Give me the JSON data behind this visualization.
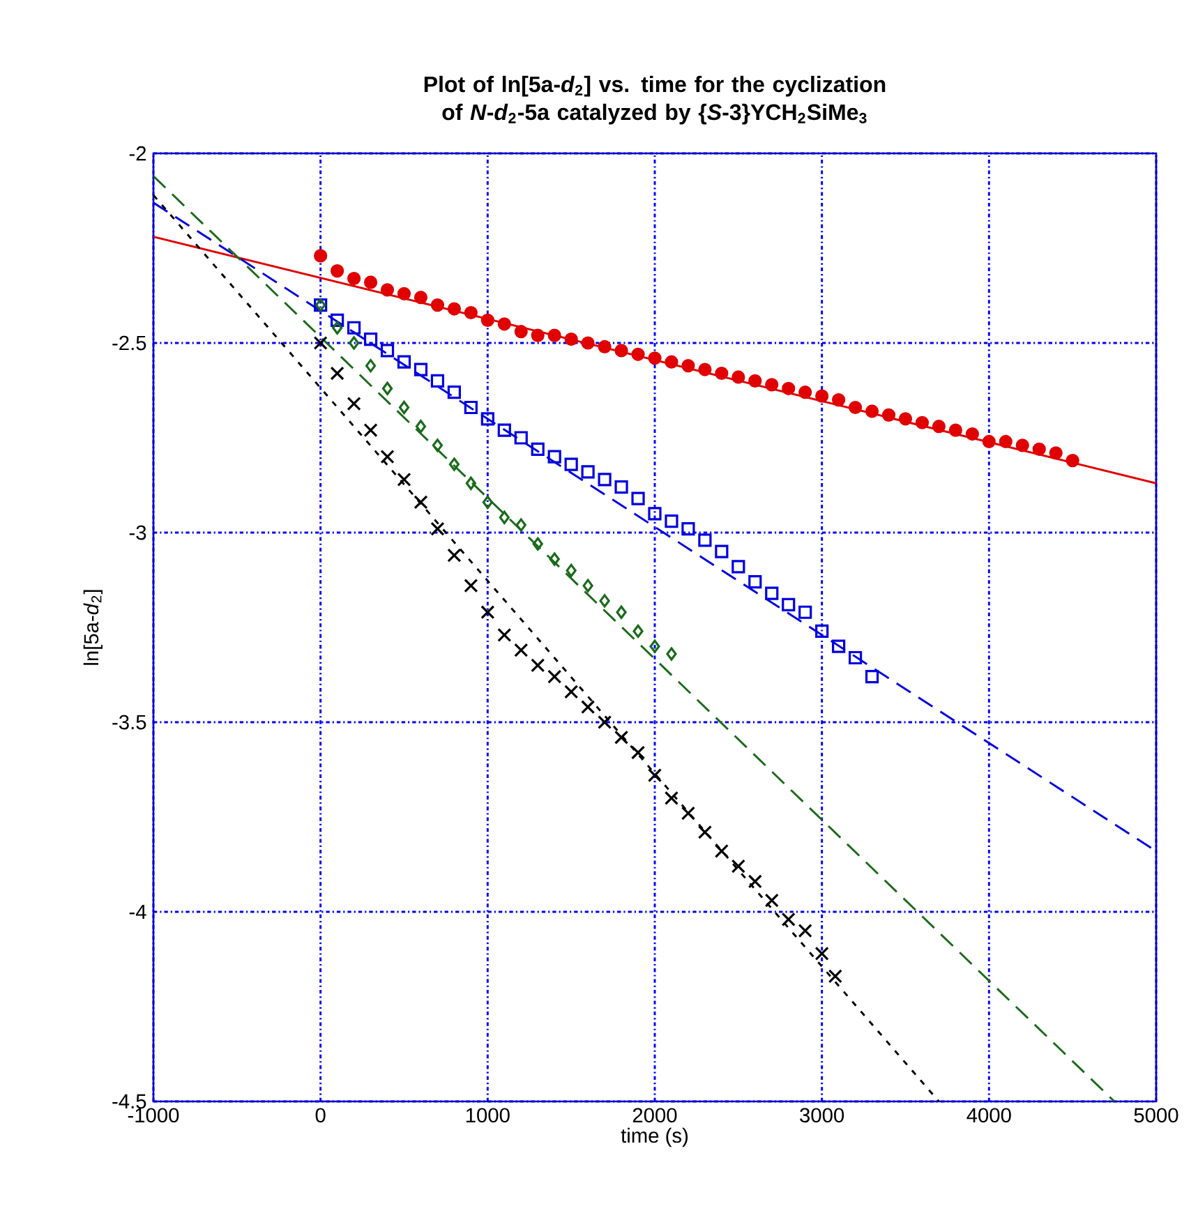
{
  "chart_data": {
    "type": "scatter",
    "title": "Plot of ln[5a-*d*$_{2}$] vs. time for the cyclization of *N*-*d*$_{2}$-5a catalyzed by {*S*-3}YCH$_{2}$SiMe$_{3}$",
    "xlabel": "time (s)",
    "ylabel": "ln[5a-*d*$_{2}$]",
    "xlim": [
      -1000,
      5000
    ],
    "ylim": [
      -4.5,
      -2
    ],
    "xticks": [
      -1000,
      0,
      1000,
      2000,
      3000,
      4000,
      5000
    ],
    "yticks": [
      -4.5,
      -4,
      -3.5,
      -3,
      -2.5,
      -2
    ],
    "grid": true,
    "series": [
      {
        "marker": "circle",
        "color": "#e00000",
        "x": [
          0,
          100,
          200,
          300,
          400,
          500,
          600,
          700,
          800,
          900,
          1000,
          1100,
          1200,
          1300,
          1400,
          1500,
          1600,
          1700,
          1800,
          1900,
          2000,
          2100,
          2200,
          2300,
          2400,
          2500,
          2600,
          2700,
          2800,
          2900,
          3000,
          3100,
          3200,
          3300,
          3400,
          3500,
          3600,
          3700,
          3800,
          3900,
          4000,
          4100,
          4200,
          4300,
          4400,
          4500
        ],
        "values": [
          -2.27,
          -2.31,
          -2.33,
          -2.34,
          -2.36,
          -2.37,
          -2.38,
          -2.4,
          -2.41,
          -2.42,
          -2.44,
          -2.45,
          -2.47,
          -2.48,
          -2.48,
          -2.49,
          -2.5,
          -2.51,
          -2.52,
          -2.53,
          -2.54,
          -2.55,
          -2.56,
          -2.57,
          -2.58,
          -2.59,
          -2.6,
          -2.61,
          -2.62,
          -2.63,
          -2.64,
          -2.65,
          -2.67,
          -2.68,
          -2.69,
          -2.7,
          -2.71,
          -2.72,
          -2.73,
          -2.74,
          -2.76,
          -2.76,
          -2.77,
          -2.78,
          -2.79,
          -2.81
        ]
      },
      {
        "marker": "square",
        "color": "#0000e0",
        "x": [
          0,
          100,
          200,
          300,
          400,
          500,
          600,
          700,
          800,
          900,
          1000,
          1100,
          1200,
          1300,
          1400,
          1500,
          1600,
          1700,
          1800,
          1900,
          2000,
          2100,
          2200,
          2300,
          2400,
          2500,
          2600,
          2700,
          2800,
          2900,
          3000,
          3100,
          3200,
          3300
        ],
        "values": [
          -2.4,
          -2.44,
          -2.46,
          -2.49,
          -2.52,
          -2.55,
          -2.57,
          -2.6,
          -2.63,
          -2.67,
          -2.7,
          -2.73,
          -2.75,
          -2.78,
          -2.8,
          -2.82,
          -2.84,
          -2.86,
          -2.88,
          -2.91,
          -2.95,
          -2.97,
          -2.99,
          -3.02,
          -3.05,
          -3.09,
          -3.13,
          -3.16,
          -3.19,
          -3.21,
          -3.26,
          -3.3,
          -3.33,
          -3.38
        ]
      },
      {
        "marker": "diamond",
        "color": "#1a6b1a",
        "x": [
          0,
          100,
          200,
          300,
          400,
          500,
          600,
          700,
          800,
          900,
          1000,
          1100,
          1200,
          1300,
          1400,
          1500,
          1600,
          1700,
          1800,
          1900,
          2000,
          2100
        ],
        "values": [
          -2.4,
          -2.46,
          -2.5,
          -2.56,
          -2.62,
          -2.67,
          -2.72,
          -2.77,
          -2.82,
          -2.87,
          -2.92,
          -2.96,
          -2.98,
          -3.03,
          -3.07,
          -3.1,
          -3.14,
          -3.18,
          -3.21,
          -3.26,
          -3.3,
          -3.32
        ]
      },
      {
        "marker": "cross",
        "color": "#000000",
        "x": [
          0,
          100,
          200,
          300,
          400,
          500,
          600,
          700,
          800,
          900,
          1000,
          1100,
          1200,
          1300,
          1400,
          1500,
          1600,
          1700,
          1800,
          1900,
          2000,
          2100,
          2200,
          2300,
          2400,
          2500,
          2600,
          2700,
          2800,
          2900,
          3000,
          3080
        ],
        "values": [
          -2.5,
          -2.58,
          -2.66,
          -2.73,
          -2.8,
          -2.86,
          -2.92,
          -2.99,
          -3.06,
          -3.14,
          -3.21,
          -3.27,
          -3.31,
          -3.35,
          -3.38,
          -3.42,
          -3.46,
          -3.5,
          -3.54,
          -3.58,
          -3.64,
          -3.7,
          -3.74,
          -3.79,
          -3.84,
          -3.88,
          -3.92,
          -3.97,
          -4.02,
          -4.05,
          -4.11,
          -4.17
        ]
      },
      {
        "type": "line",
        "line_style": "solid",
        "color": "#e00000",
        "x": [
          -1000,
          5000
        ],
        "values": [
          -2.22,
          -2.87
        ]
      },
      {
        "type": "line",
        "line_style": "dashed",
        "color": "#0000e0",
        "x": [
          -1000,
          5000
        ],
        "values": [
          -2.13,
          -3.84
        ]
      },
      {
        "type": "line",
        "line_style": "dashed",
        "color": "#1a6b1a",
        "x": [
          -1000,
          4750
        ],
        "values": [
          -2.06,
          -4.5
        ]
      },
      {
        "type": "line",
        "line_style": "dotted",
        "color": "#000000",
        "x": [
          -1000,
          3700
        ],
        "values": [
          -2.11,
          -4.5
        ]
      }
    ]
  }
}
